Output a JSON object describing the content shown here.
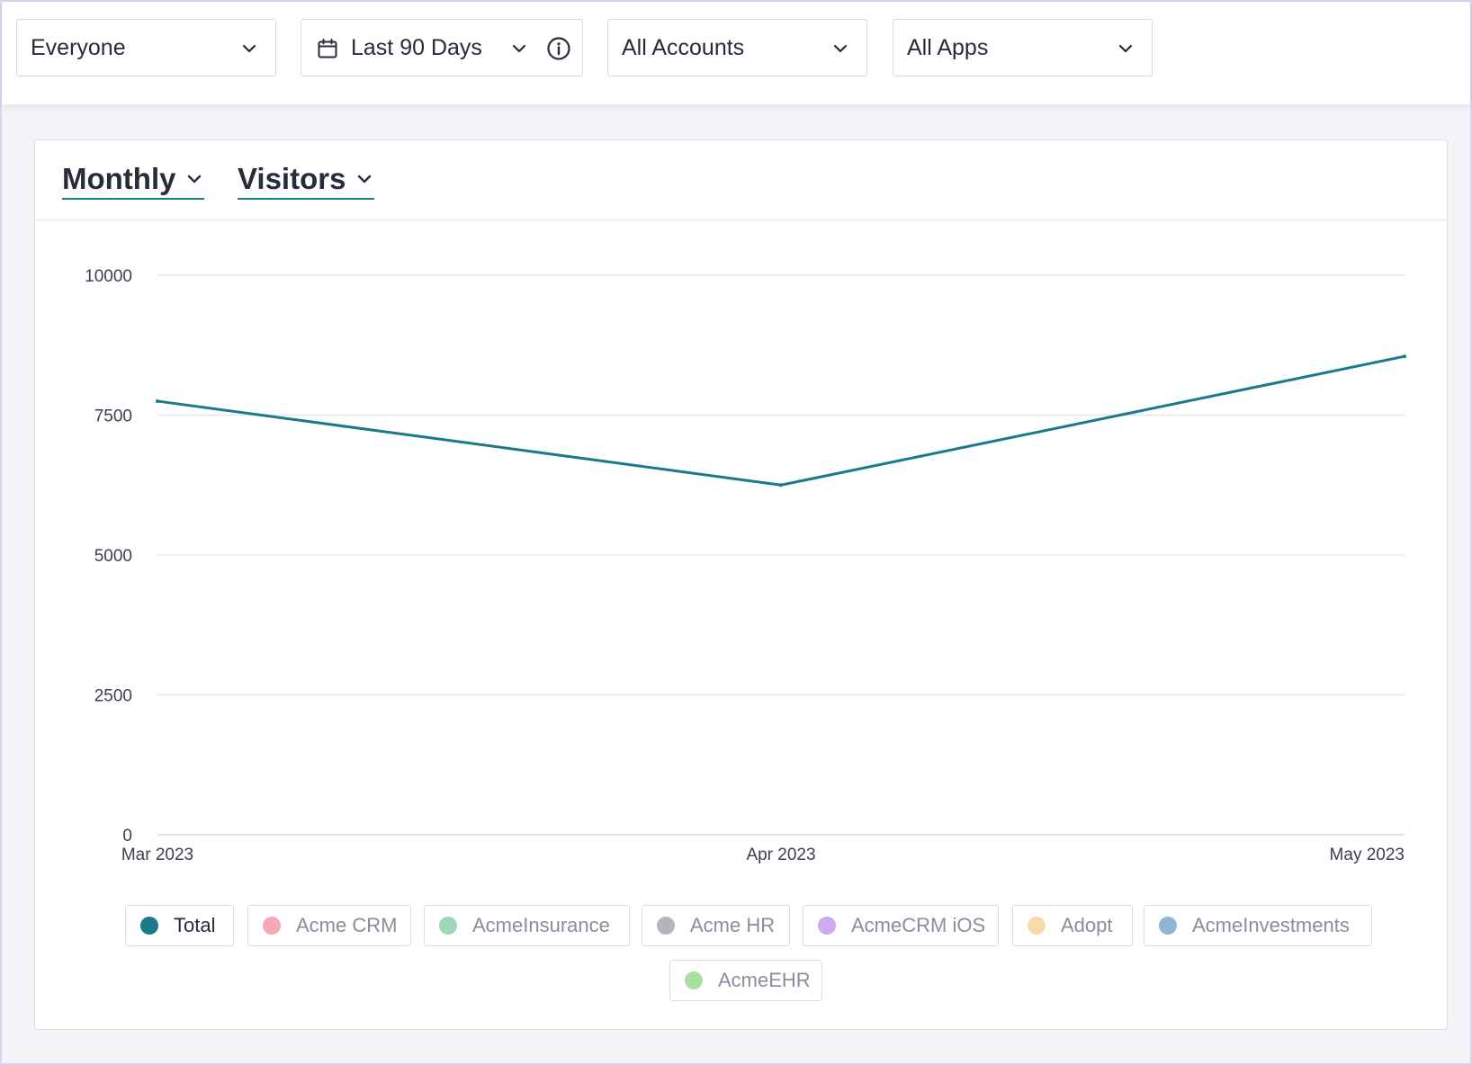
{
  "filters": {
    "segment": {
      "value": "Everyone"
    },
    "date_range": {
      "value": "Last 90 Days"
    },
    "accounts": {
      "value": "All Accounts"
    },
    "apps": {
      "value": "All Apps"
    }
  },
  "card": {
    "interval": {
      "value": "Monthly"
    },
    "metric": {
      "value": "Visitors"
    }
  },
  "colors": {
    "accent": "#1a7a8c",
    "gridline": "#e4e6ec",
    "axis_text": "#3c4050"
  },
  "chart_data": {
    "type": "line",
    "title": "",
    "xlabel": "",
    "ylabel": "",
    "categories": [
      "Mar 2023",
      "Apr 2023",
      "May 2023"
    ],
    "ylim": [
      0,
      10000
    ],
    "yticks": [
      "10000",
      "7500",
      "5000",
      "2500",
      "0"
    ],
    "grid": true,
    "legend_position": "bottom",
    "series": [
      {
        "name": "Total",
        "values": [
          7750,
          6250,
          8550
        ],
        "color": "#1a7a8c"
      }
    ]
  },
  "legend": [
    {
      "label": "Total",
      "color": "#1a7a8c",
      "active": true
    },
    {
      "label": "Acme CRM",
      "color": "#f7a8b8",
      "active": false
    },
    {
      "label": "AcmeInsurance",
      "color": "#9fd8b8",
      "active": false
    },
    {
      "label": "Acme HR",
      "color": "#b4b5ba",
      "active": false
    },
    {
      "label": "AcmeCRM iOS",
      "color": "#cfaaf2",
      "active": false
    },
    {
      "label": "Adopt",
      "color": "#f6dca8",
      "active": false
    },
    {
      "label": "AcmeInvestments",
      "color": "#8fb4d4",
      "active": false
    },
    {
      "label": "AcmeEHR",
      "color": "#a8e0a0",
      "active": false
    }
  ]
}
